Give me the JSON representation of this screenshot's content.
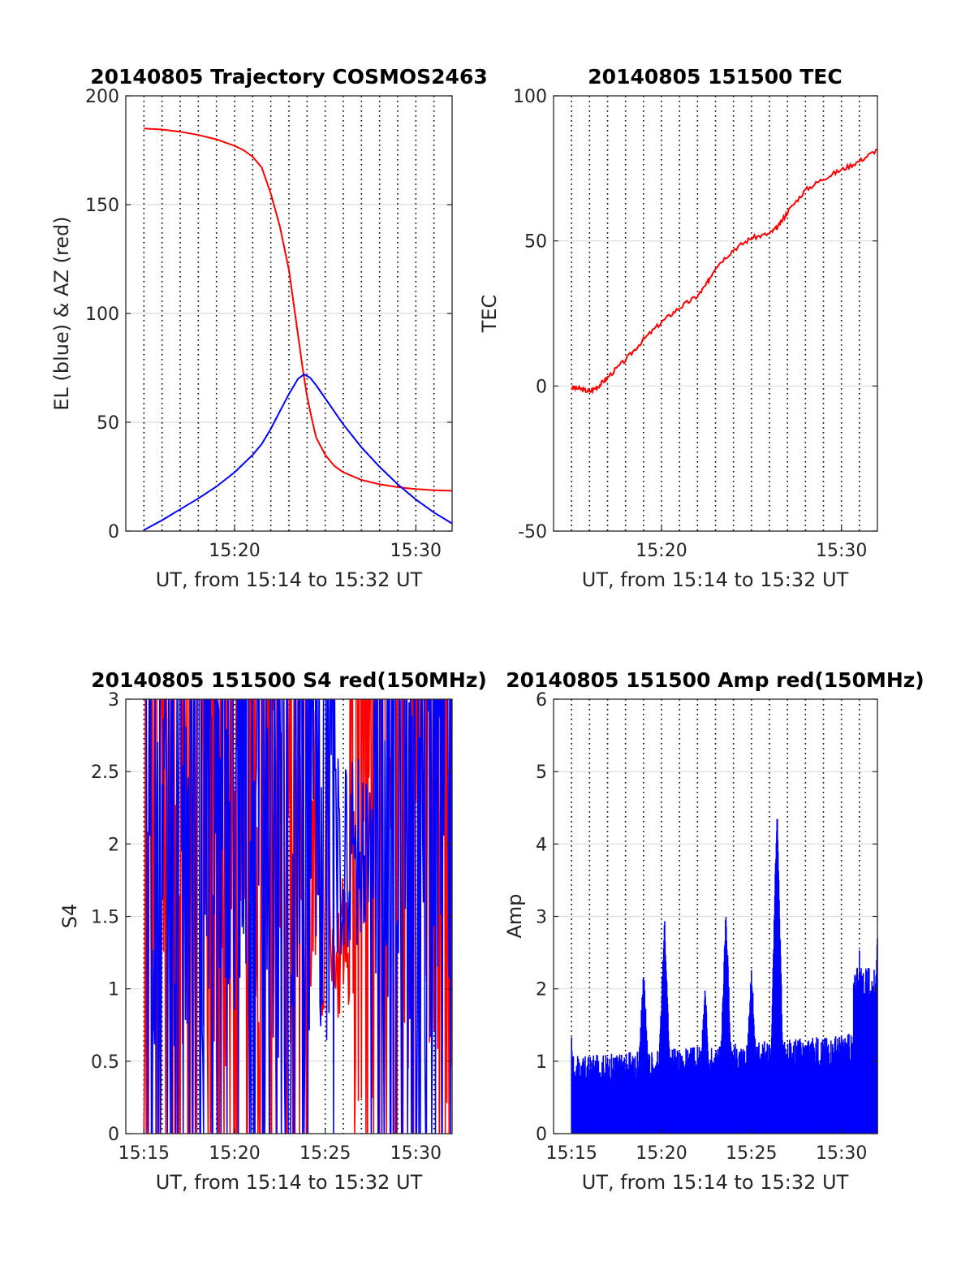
{
  "chart_data": [
    {
      "type": "line",
      "title": "20140805 Trajectory COSMOS2463",
      "xlabel": "UT, from 15:14 to 15:32 UT",
      "ylabel": "EL (blue) & AZ (red)",
      "xlim": [
        "15:14",
        "15:32"
      ],
      "ylim": [
        0,
        200
      ],
      "yticks": [
        0,
        50,
        100,
        150,
        200
      ],
      "xticks": [
        {
          "t": "15:20",
          "label": "15:20"
        },
        {
          "t": "15:30",
          "label": "15:30"
        }
      ],
      "grid": true,
      "series": [
        {
          "color": "#ff0000",
          "x": [
            "15:15:00",
            "15:16:00",
            "15:17:00",
            "15:18:00",
            "15:19:00",
            "15:20:00",
            "15:20:30",
            "15:21:00",
            "15:21:30",
            "15:22:00",
            "15:22:30",
            "15:23:00",
            "15:23:15",
            "15:23:30",
            "15:23:45",
            "15:24:00",
            "15:24:15",
            "15:24:30",
            "15:25:00",
            "15:25:30",
            "15:26:00",
            "15:27:00",
            "15:28:00",
            "15:29:00",
            "15:30:00",
            "15:31:00",
            "15:32:00"
          ],
          "y": [
            185,
            184.5,
            183.5,
            182,
            180,
            177,
            175,
            172,
            167,
            155,
            140,
            120,
            105,
            90,
            75,
            62,
            52,
            43,
            35,
            30,
            27,
            23.5,
            21.5,
            20.2,
            19.3,
            18.8,
            18.5
          ]
        },
        {
          "color": "#0000ff",
          "x": [
            "15:15:00",
            "15:16:00",
            "15:17:00",
            "15:18:00",
            "15:19:00",
            "15:20:00",
            "15:21:00",
            "15:21:30",
            "15:22:00",
            "15:22:30",
            "15:23:00",
            "15:23:30",
            "15:23:50",
            "15:24:10",
            "15:24:30",
            "15:25:00",
            "15:25:30",
            "15:26:00",
            "15:27:00",
            "15:28:00",
            "15:29:00",
            "15:30:00",
            "15:31:00",
            "15:32:00"
          ],
          "y": [
            0.5,
            5,
            10,
            15,
            20.5,
            27,
            35,
            40,
            47,
            55,
            63,
            70,
            72,
            70.5,
            67,
            61,
            55,
            49,
            38.5,
            29.5,
            21.5,
            14.5,
            8.5,
            3.5
          ]
        }
      ]
    },
    {
      "type": "line",
      "title": "20140805 151500 TEC",
      "xlabel": "UT, from 15:14 to 15:32 UT",
      "ylabel": "TEC",
      "xlim": [
        "15:14",
        "15:32"
      ],
      "ylim": [
        -50,
        100
      ],
      "yticks": [
        -50,
        0,
        50,
        100
      ],
      "xticks": [
        {
          "t": "15:20",
          "label": "15:20"
        },
        {
          "t": "15:30",
          "label": "15:30"
        }
      ],
      "grid": true,
      "series": [
        {
          "color": "#ff0000",
          "x": [
            "15:15:00",
            "15:15:30",
            "15:16:00",
            "15:16:30",
            "15:17:00",
            "15:18:00",
            "15:19:00",
            "15:20:00",
            "15:21:00",
            "15:22:00",
            "15:22:30",
            "15:23:00",
            "15:24:00",
            "15:25:00",
            "15:26:00",
            "15:26:30",
            "15:27:00",
            "15:28:00",
            "15:29:00",
            "15:30:00",
            "15:31:00",
            "15:32:00"
          ],
          "y": [
            -0.5,
            -1,
            -2,
            0,
            3,
            9,
            16,
            22,
            27,
            31,
            35,
            41,
            47,
            51,
            52.5,
            55,
            60,
            67.5,
            71.5,
            74.5,
            77.5,
            81.5
          ]
        }
      ]
    },
    {
      "type": "line",
      "title": "20140805 151500 S4 red(150MHz)",
      "xlabel": "UT, from 15:14 to 15:32 UT",
      "ylabel": "S4",
      "xlim": [
        "15:14",
        "15:32"
      ],
      "ylim": [
        0,
        3
      ],
      "yticks": [
        0,
        0.5,
        1,
        1.5,
        2,
        2.5,
        3
      ],
      "xticks": [
        {
          "t": "15:15",
          "label": "15:15"
        },
        {
          "t": "15:20",
          "label": "15:20"
        },
        {
          "t": "15:25",
          "label": "15:25"
        },
        {
          "t": "15:30",
          "label": "15:30"
        }
      ],
      "grid": true,
      "series": [
        {
          "color": "#ff0000",
          "x_start": "15:15:00",
          "x_end": "15:32:00",
          "note_x": "dense noisy series",
          "seed": 7,
          "mean": 1.8,
          "spread": 1.6
        },
        {
          "color": "#0000ff",
          "x_start": "15:15:00",
          "x_end": "15:32:00",
          "seed": 11,
          "mean": 2.0,
          "spread": 1.5
        }
      ]
    },
    {
      "type": "line",
      "title": "20140805 151500 Amp red(150MHz)",
      "xlabel": "UT, from 15:14 to 15:32 UT",
      "ylabel": "Amp",
      "xlim": [
        "15:14",
        "15:32"
      ],
      "ylim": [
        0,
        6
      ],
      "yticks": [
        0,
        1,
        2,
        3,
        4,
        5,
        6
      ],
      "xticks": [
        {
          "t": "15:15",
          "label": "15:15"
        },
        {
          "t": "15:20",
          "label": "15:20"
        },
        {
          "t": "15:25",
          "label": "15:25"
        },
        {
          "t": "15:30",
          "label": "15:30"
        }
      ],
      "grid": true,
      "series": [
        {
          "color": "#0000ff",
          "peaks": [
            {
              "t": "15:15:00",
              "v": 1.1
            },
            {
              "t": "15:19:00",
              "v": 2.1
            },
            {
              "t": "15:20:10",
              "v": 2.8
            },
            {
              "t": "15:22:25",
              "v": 1.8
            },
            {
              "t": "15:23:35",
              "v": 2.9
            },
            {
              "t": "15:25:00",
              "v": 2.1
            },
            {
              "t": "15:26:25",
              "v": 4.35
            },
            {
              "t": "15:31:00",
              "v": 2.3
            },
            {
              "t": "15:32:00",
              "v": 2.55
            }
          ],
          "baseline": 0.75
        }
      ]
    }
  ]
}
